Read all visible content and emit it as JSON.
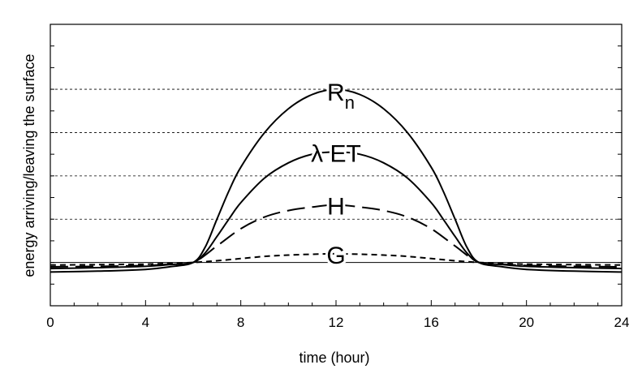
{
  "chart_data": {
    "type": "line",
    "xlabel": "time (hour)",
    "ylabel": "energy arriving/leaving the surface",
    "xlim": [
      0,
      24
    ],
    "ylim": [
      -1,
      5.5
    ],
    "x_ticks": [
      0,
      4,
      8,
      12,
      16,
      20,
      24
    ],
    "x_tick_labels": [
      "0",
      "4",
      "8",
      "12",
      "16",
      "20",
      "24"
    ],
    "y_gridlines": [
      1,
      2,
      3,
      4,
      5.5
    ],
    "grid": "horizontal dashed",
    "series": [
      {
        "name": "Rn",
        "label_main": "R",
        "label_sub": "n",
        "style": "solid",
        "x": [
          0,
          2,
          4,
          5,
          6,
          6.5,
          7,
          7.5,
          8,
          9,
          10,
          11,
          12,
          13,
          14,
          15,
          16,
          16.5,
          17,
          17.5,
          18,
          19,
          20,
          22,
          24
        ],
        "y": [
          -0.22,
          -0.2,
          -0.16,
          -0.1,
          0,
          0.35,
          1.0,
          1.65,
          2.2,
          3.0,
          3.55,
          3.88,
          4.0,
          3.88,
          3.55,
          3.0,
          2.2,
          1.65,
          1.0,
          0.35,
          0,
          -0.1,
          -0.16,
          -0.2,
          -0.22
        ]
      },
      {
        "name": "λET",
        "label_main": "λ ET",
        "style": "solid",
        "x": [
          0,
          2,
          4,
          5,
          6,
          6.5,
          7,
          7.5,
          8,
          9,
          10,
          11,
          12,
          13,
          14,
          15,
          16,
          16.5,
          17,
          17.5,
          18,
          19,
          20,
          22,
          24
        ],
        "y": [
          -0.14,
          -0.12,
          -0.09,
          -0.05,
          0,
          0.22,
          0.6,
          1.0,
          1.38,
          1.95,
          2.3,
          2.5,
          2.55,
          2.5,
          2.3,
          1.95,
          1.38,
          1.0,
          0.6,
          0.22,
          0,
          -0.05,
          -0.09,
          -0.12,
          -0.14
        ]
      },
      {
        "name": "H",
        "label_main": "H",
        "style": "long-dash",
        "x": [
          0,
          2,
          4,
          5,
          6,
          7,
          8,
          9,
          10,
          11,
          12,
          13,
          14,
          15,
          16,
          17,
          18,
          19,
          20,
          22,
          24
        ],
        "y": [
          -0.1,
          -0.09,
          -0.07,
          -0.04,
          0,
          0.38,
          0.78,
          1.05,
          1.2,
          1.28,
          1.33,
          1.28,
          1.2,
          1.05,
          0.78,
          0.38,
          0,
          -0.04,
          -0.07,
          -0.09,
          -0.1
        ]
      },
      {
        "name": "G",
        "label_main": "G",
        "style": "short-dash",
        "x": [
          0,
          2,
          4,
          5,
          6,
          7,
          8,
          9,
          10,
          11,
          12,
          13,
          14,
          15,
          16,
          17,
          18,
          19,
          20,
          22,
          24
        ],
        "y": [
          -0.06,
          -0.05,
          -0.04,
          -0.02,
          0,
          0.04,
          0.09,
          0.14,
          0.17,
          0.19,
          0.2,
          0.19,
          0.17,
          0.14,
          0.09,
          0.04,
          0,
          -0.02,
          -0.04,
          -0.05,
          -0.06
        ]
      }
    ]
  }
}
